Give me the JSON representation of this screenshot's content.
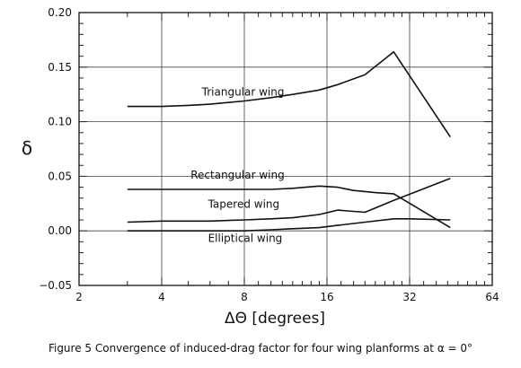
{
  "chart_data": {
    "type": "line",
    "xscale": "log2",
    "xlim": [
      2,
      64
    ],
    "ylim": [
      -0.05,
      0.2
    ],
    "xticks": [
      {
        "value": 2,
        "label": "2"
      },
      {
        "value": 4,
        "label": "4"
      },
      {
        "value": 8,
        "label": "8"
      },
      {
        "value": 16,
        "label": "16"
      },
      {
        "value": 32,
        "label": "32"
      },
      {
        "value": 64,
        "label": "64"
      }
    ],
    "yticks": [
      {
        "value": -0.05,
        "label": "−0.05"
      },
      {
        "value": 0.0,
        "label": "0.00"
      },
      {
        "value": 0.05,
        "label": "0.05"
      },
      {
        "value": 0.1,
        "label": "0.10"
      },
      {
        "value": 0.15,
        "label": "0.15"
      },
      {
        "value": 0.2,
        "label": "0.20"
      }
    ],
    "xlabel": "ΔΘ [degrees]",
    "ylabel": "δ",
    "grid": true,
    "series": [
      {
        "name": "Triangular wing",
        "x": [
          3,
          4,
          5,
          6,
          8,
          10,
          12,
          15,
          17.5,
          22,
          28,
          45
        ],
        "y": [
          0.114,
          0.114,
          0.115,
          0.116,
          0.119,
          0.122,
          0.125,
          0.129,
          0.134,
          0.143,
          0.164,
          0.086
        ]
      },
      {
        "name": "Rectangular wing",
        "x": [
          3,
          4,
          6,
          8,
          10,
          12,
          15,
          17.5,
          20,
          24,
          28,
          45
        ],
        "y": [
          0.038,
          0.038,
          0.038,
          0.038,
          0.038,
          0.039,
          0.041,
          0.04,
          0.037,
          0.035,
          0.034,
          0.003
        ]
      },
      {
        "name": "Tapered wing",
        "x": [
          3,
          4,
          6,
          8,
          10,
          12,
          15,
          17.5,
          22,
          28,
          45
        ],
        "y": [
          0.008,
          0.009,
          0.009,
          0.01,
          0.011,
          0.012,
          0.015,
          0.019,
          0.017,
          0.028,
          0.048
        ]
      },
      {
        "name": "Elliptical wing",
        "x": [
          3,
          4,
          6,
          8,
          10,
          12,
          15,
          17.5,
          22,
          28,
          32,
          45
        ],
        "y": [
          0.0,
          0.0,
          0.0,
          0.0,
          0.001,
          0.002,
          0.003,
          0.005,
          0.008,
          0.011,
          0.011,
          0.01
        ]
      }
    ],
    "annotations": [
      {
        "text": "Triangular wing",
        "x": 5.6,
        "y": 0.124
      },
      {
        "text": "Rectangular wing",
        "x": 5.1,
        "y": 0.048
      },
      {
        "text": "Tapered wing",
        "x": 5.9,
        "y": 0.021
      },
      {
        "text": "Elliptical wing",
        "x": 5.9,
        "y": -0.01
      }
    ]
  },
  "caption": "Figure 5 Convergence of induced-drag factor for four wing planforms at α = 0°"
}
